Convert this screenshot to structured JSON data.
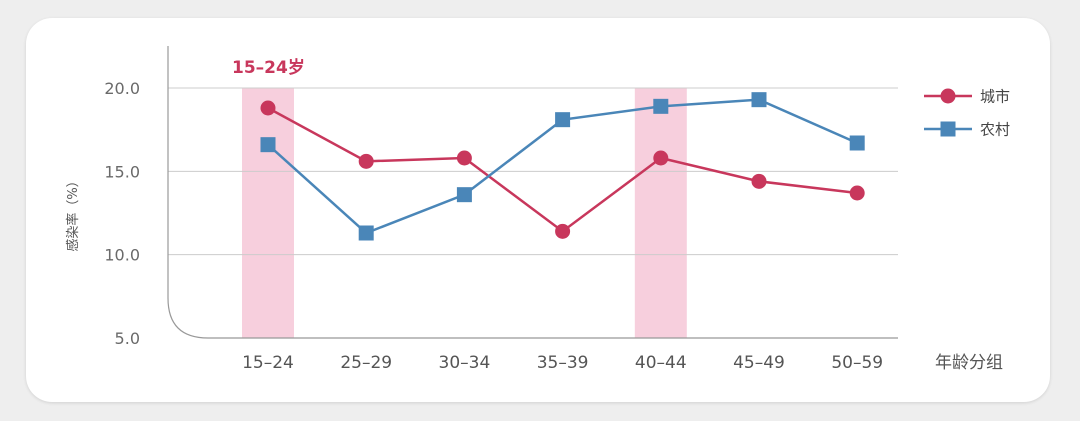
{
  "chart_data": {
    "type": "line",
    "categories": [
      "15–24",
      "25–29",
      "30–34",
      "35–39",
      "40–44",
      "45–49",
      "50–59"
    ],
    "highlighted_categories": [
      "15–24",
      "40–44"
    ],
    "series": [
      {
        "name": "城市",
        "marker": "circle",
        "color": "#c8375c",
        "values": [
          18.8,
          15.6,
          15.8,
          11.4,
          15.8,
          14.4,
          13.7
        ]
      },
      {
        "name": "农村",
        "marker": "square",
        "color": "#4a86b8",
        "values": [
          16.6,
          11.3,
          13.6,
          18.1,
          18.9,
          19.3,
          16.7
        ]
      }
    ],
    "ylabel": "感染率（%）",
    "xlabel": "年龄分组",
    "yticks": [
      5.0,
      10.0,
      15.0,
      20.0
    ],
    "ylim": [
      5.0,
      20.0
    ],
    "annotation": "15–24岁",
    "legend_position": "right",
    "grid": true,
    "colors": {
      "highlight_band": "#f7cfdd",
      "highlight_text": "#c8375c",
      "grid": "#cccccc",
      "axis": "#999999"
    }
  }
}
